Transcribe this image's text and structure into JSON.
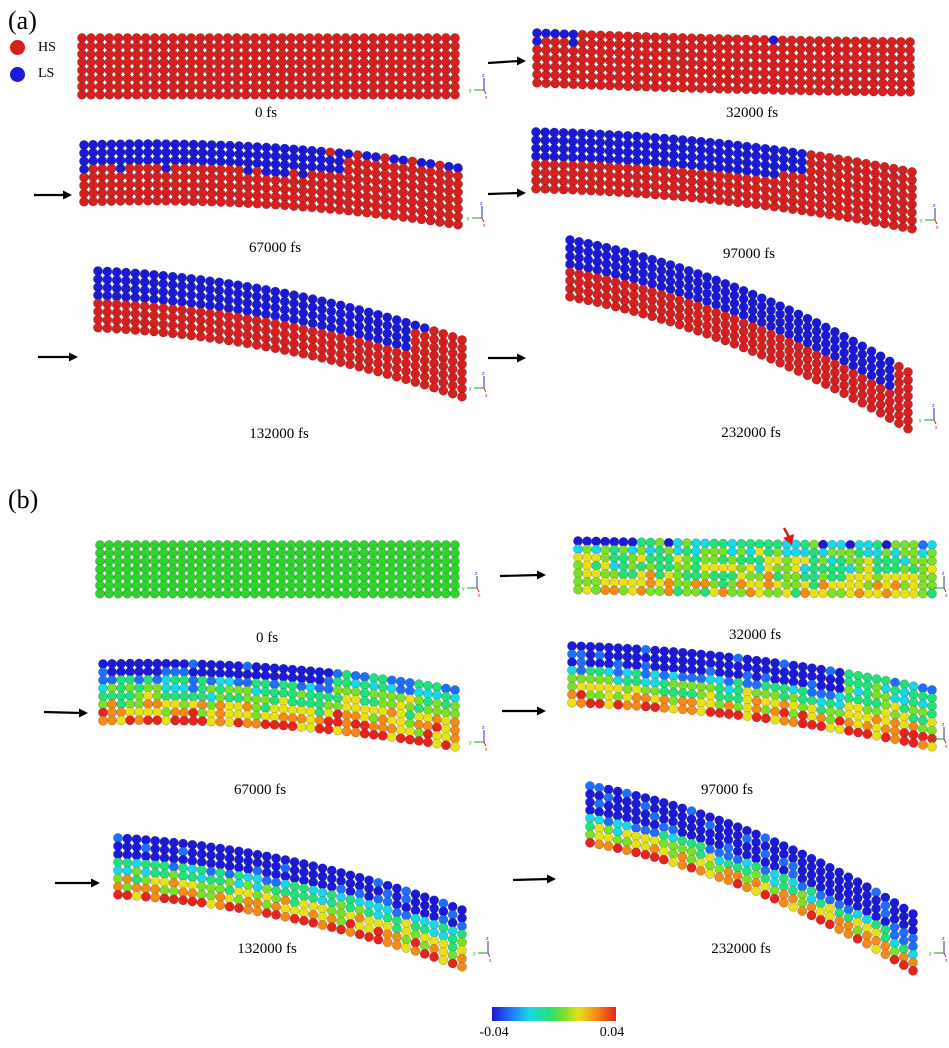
{
  "panel_a": {
    "label": "(a)",
    "legend": [
      {
        "text": "HS",
        "color": "#d61f1f"
      },
      {
        "text": "LS",
        "color": "#1a1ad6"
      }
    ],
    "captions": [
      "0 fs",
      "32000 fs",
      "67000 fs",
      "97000 fs",
      "132000 fs",
      "232000 fs"
    ]
  },
  "panel_b": {
    "label": "(b)",
    "captions": [
      "0 fs",
      "32000 fs",
      "67000 fs",
      "97000 fs",
      "132000 fs",
      "232000 fs"
    ]
  },
  "colorbar": {
    "min_label": "-0.04",
    "max_label": "0.04",
    "colors": [
      "#1a1ad8",
      "#1f6fff",
      "#18d8e8",
      "#22e07a",
      "#7be02a",
      "#e8e01a",
      "#f58a18",
      "#e8221c"
    ]
  },
  "axis_glyphs": {
    "z": "z",
    "y": "y",
    "x": "x"
  },
  "colors": {
    "hs_red": "#d61f1f",
    "ls_blue": "#1a1ad6",
    "arrow_black": "#000000",
    "arrow_red": "#e01818",
    "strain_green": "#2fd42f"
  }
}
